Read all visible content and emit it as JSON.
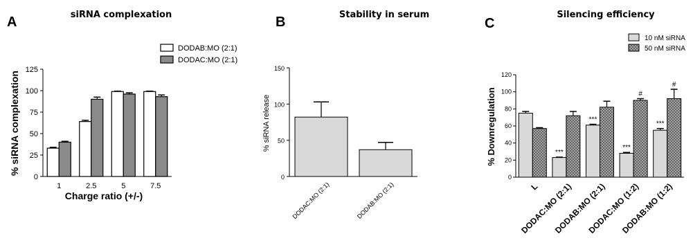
{
  "chart_data": [
    {
      "panel": "A",
      "type": "bar",
      "title": "siRNA complexation",
      "xlabel": "Charge ratio (+/-)",
      "ylabel": "% siRNA complexation",
      "ylim": [
        0,
        125
      ],
      "yticks": [
        0,
        25,
        50,
        75,
        100,
        125
      ],
      "categories": [
        "1",
        "2.5",
        "5",
        "7.5"
      ],
      "legend_position": "top-right",
      "series": [
        {
          "name": "DODAB:MO (2:1)",
          "color": "#ffffff",
          "values": [
            33,
            64,
            99,
            99
          ],
          "errors": [
            1,
            1.5,
            0.5,
            0.5
          ]
        },
        {
          "name": "DODAC:MO (2:1)",
          "color": "#8a8a8a",
          "values": [
            40,
            90,
            96,
            93
          ],
          "errors": [
            1,
            2.5,
            1.5,
            2
          ]
        }
      ]
    },
    {
      "panel": "B",
      "type": "bar",
      "title": "Stability in serum",
      "xlabel": "",
      "ylabel": "% siRNA release",
      "ylim": [
        0,
        150
      ],
      "yticks": [
        0,
        50,
        100,
        150
      ],
      "categories": [
        "DODAC:MO (2:1)",
        "DODAB:MO (2:1)"
      ],
      "series": [
        {
          "name": "",
          "color": "#d9d9d9",
          "values": [
            82,
            37
          ],
          "errors": [
            21,
            10
          ]
        }
      ]
    },
    {
      "panel": "C",
      "type": "bar",
      "title": "Silencing efficiency",
      "xlabel": "",
      "ylabel": "% Downregulation",
      "ylim": [
        0,
        120
      ],
      "yticks": [
        0,
        20,
        40,
        60,
        80,
        100,
        120
      ],
      "categories": [
        "L",
        "DODAC:MO (2:1)",
        "DODAB:MO (2:1)",
        "DODAC:MO (1:2)",
        "DODAB:MO (1:2)"
      ],
      "legend_position": "top-right",
      "series": [
        {
          "name": "10 nM siRNA",
          "color": "#d9d9d9",
          "values": [
            75,
            23,
            61,
            28,
            55
          ],
          "errors": [
            2,
            0.5,
            1,
            1,
            2
          ],
          "annotations": [
            "",
            "***",
            "***",
            "***",
            "***"
          ]
        },
        {
          "name": "50 nM siRNA",
          "color": "#9a9a9a",
          "pattern": "crosshatch",
          "values": [
            57,
            72,
            82,
            90,
            92
          ],
          "errors": [
            1,
            5,
            7,
            2,
            11
          ],
          "annotations": [
            "",
            "",
            "",
            "#",
            "#"
          ]
        }
      ]
    }
  ],
  "panel_letters": [
    "A",
    "B",
    "C"
  ]
}
